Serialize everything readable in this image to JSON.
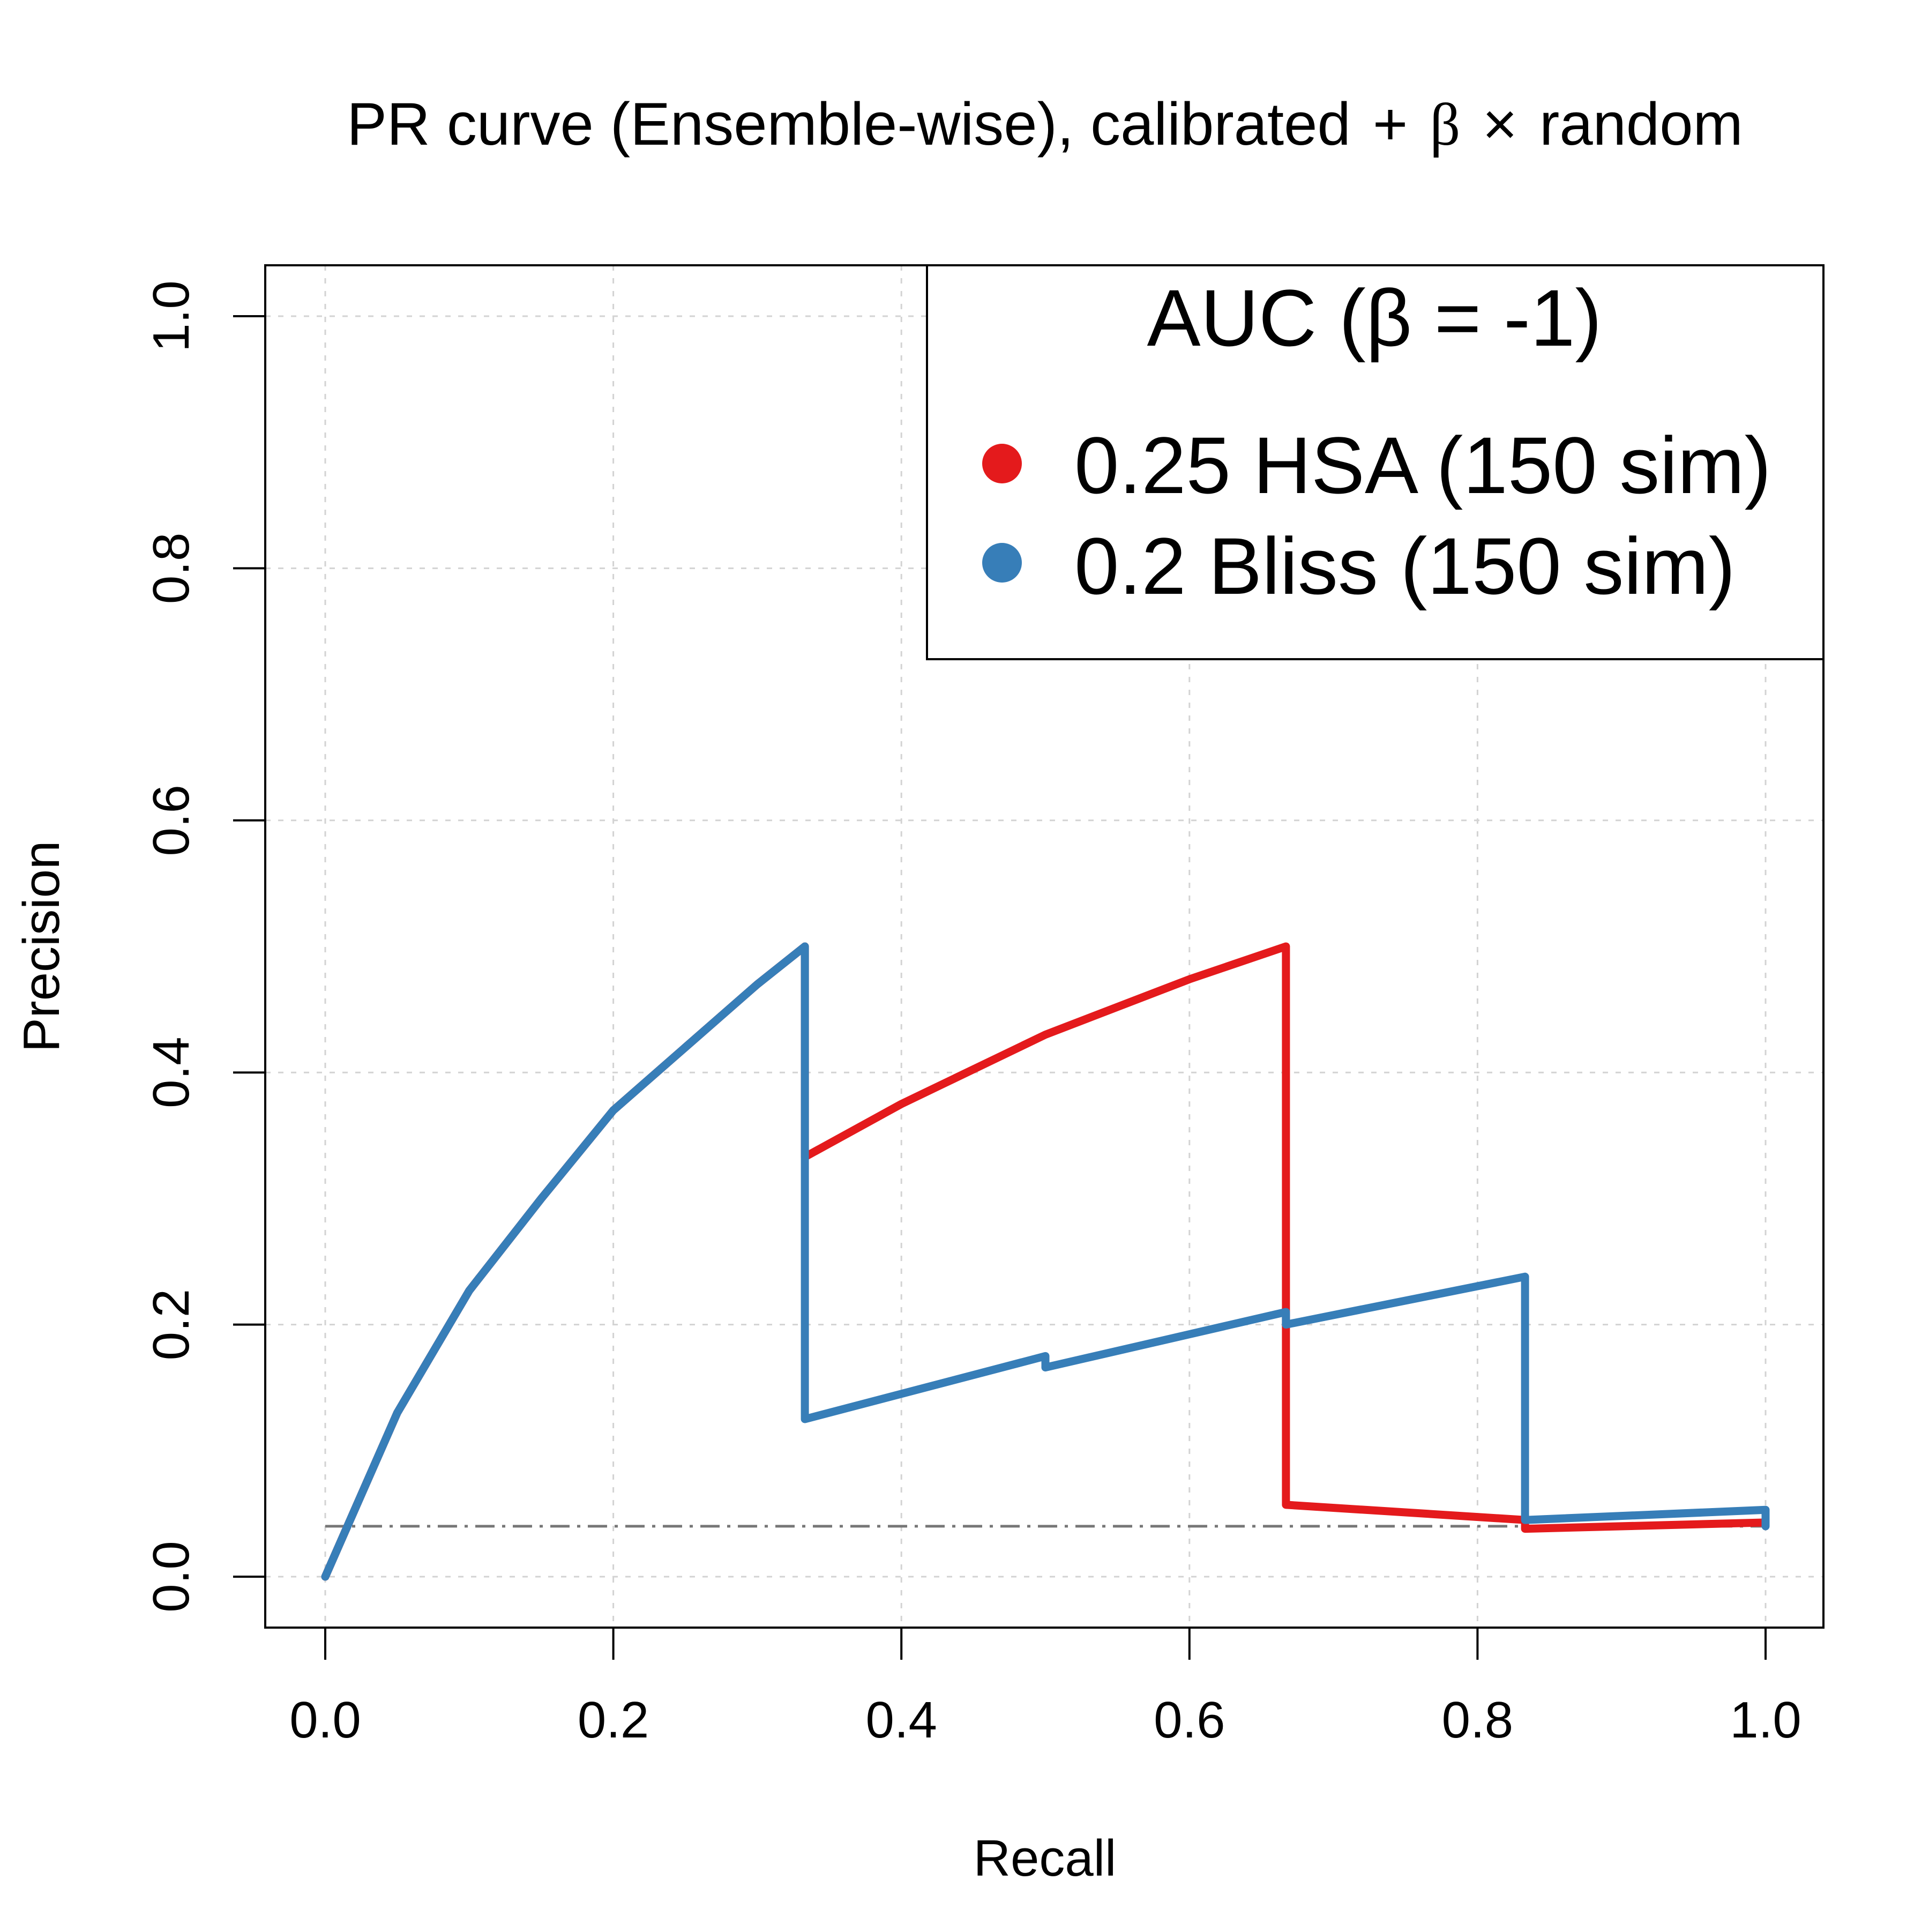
{
  "chart_data": {
    "type": "line",
    "title": "PR curve (Ensemble-wise), calibrated",
    "title_plus": "+",
    "title_beta": "β",
    "title_times": "×",
    "title_tail": "random",
    "xlabel": "Recall",
    "ylabel": "Precision",
    "xlim": [
      0,
      1
    ],
    "ylim": [
      0,
      1
    ],
    "x_ticks": [
      0,
      0.2,
      0.4,
      0.6,
      0.8,
      1
    ],
    "x_tick_labels": [
      "0.0",
      "0.2",
      "0.4",
      "0.6",
      "0.8",
      "1.0"
    ],
    "y_ticks": [
      0,
      0.2,
      0.4,
      0.6,
      0.8,
      1
    ],
    "y_tick_labels": [
      "0.0",
      "0.2",
      "0.4",
      "0.6",
      "0.8",
      "1.0"
    ],
    "grid": true,
    "legend": {
      "title": "AUC (β = -1)",
      "position": "top-right",
      "entries": [
        "0.25 HSA (150 sim)",
        "0.2 Bliss (150 sim)"
      ]
    },
    "baseline": 0.04,
    "series": [
      {
        "name": "0.25 HSA (150 sim)",
        "color": "#e41a1c",
        "points": [
          [
            0.0,
            0.0
          ],
          [
            0.05,
            0.13
          ],
          [
            0.1,
            0.227
          ],
          [
            0.15,
            0.3
          ],
          [
            0.2,
            0.37
          ],
          [
            0.25,
            0.42
          ],
          [
            0.3,
            0.47
          ],
          [
            0.333,
            0.5
          ],
          [
            0.333,
            0.333
          ],
          [
            0.4,
            0.375
          ],
          [
            0.5,
            0.43
          ],
          [
            0.6,
            0.474
          ],
          [
            0.667,
            0.5
          ],
          [
            0.667,
            0.057
          ],
          [
            0.833,
            0.045
          ],
          [
            0.833,
            0.038
          ],
          [
            1.0,
            0.043
          ]
        ]
      },
      {
        "name": "0.2 Bliss (150 sim)",
        "color": "#377eb8",
        "points": [
          [
            0.0,
            0.0
          ],
          [
            0.05,
            0.13
          ],
          [
            0.1,
            0.227
          ],
          [
            0.15,
            0.3
          ],
          [
            0.2,
            0.37
          ],
          [
            0.25,
            0.42
          ],
          [
            0.3,
            0.47
          ],
          [
            0.333,
            0.5
          ],
          [
            0.333,
            0.125
          ],
          [
            0.5,
            0.175
          ],
          [
            0.5,
            0.166
          ],
          [
            0.667,
            0.21
          ],
          [
            0.667,
            0.2
          ],
          [
            0.833,
            0.238
          ],
          [
            0.833,
            0.045
          ],
          [
            1.0,
            0.053
          ],
          [
            1.0,
            0.04
          ]
        ]
      }
    ]
  }
}
